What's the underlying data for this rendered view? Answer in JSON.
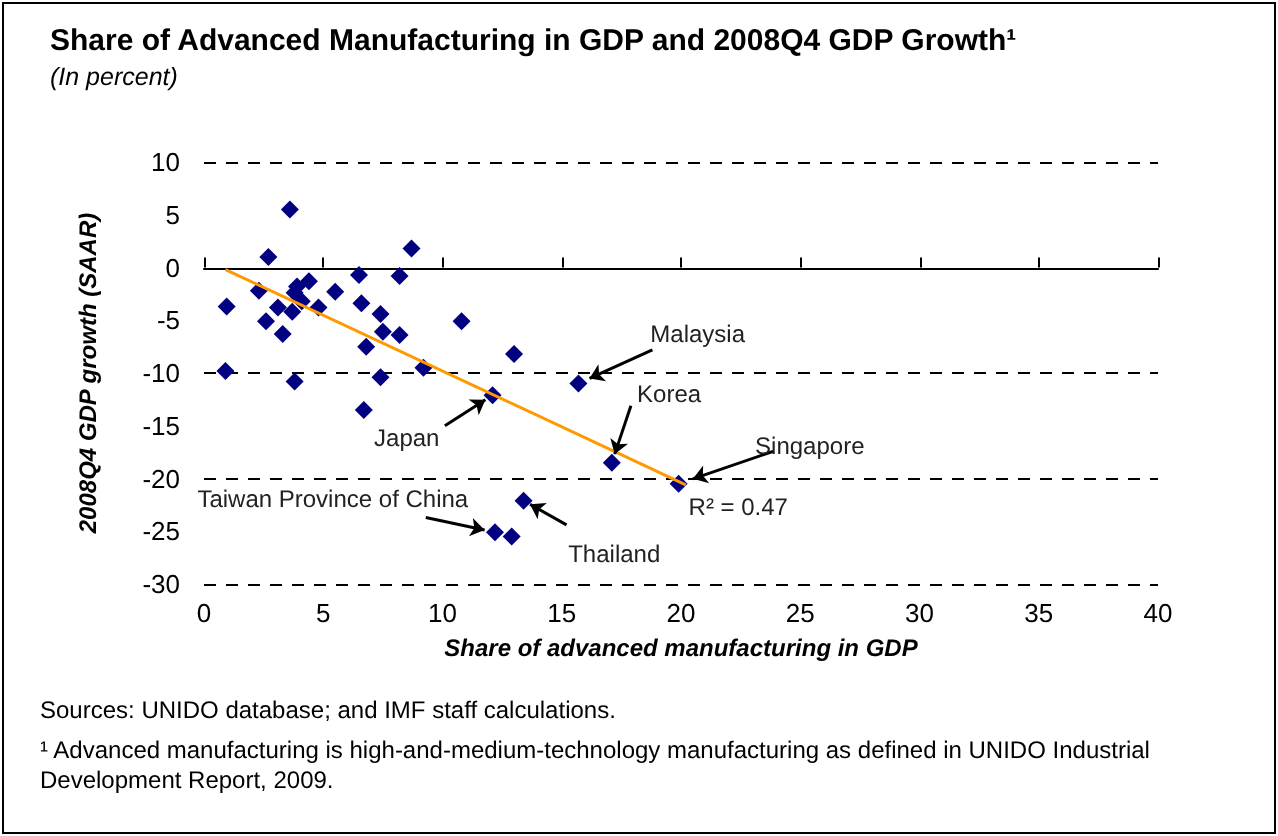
{
  "chart_data": {
    "type": "scatter",
    "title": "Share of Advanced Manufacturing in GDP and 2008Q4 GDP Growth¹",
    "subtitle": "(In percent)",
    "xlabel": "Share of advanced manufacturing in GDP",
    "ylabel": "2008Q4 GDP growth (SAAR)",
    "xlim": [
      0,
      40
    ],
    "xticks": [
      0,
      5,
      10,
      15,
      20,
      25,
      30,
      35,
      40
    ],
    "ylim": [
      -30,
      10
    ],
    "yticks": [
      -30,
      -25,
      -20,
      -15,
      -10,
      -5,
      0,
      5,
      10
    ],
    "grid": "y",
    "marker": "diamond",
    "series": [
      {
        "color": "#000080",
        "x": [
          0.95,
          2.3,
          2.7,
          2.6,
          3.1,
          3.3,
          3.6,
          3.7,
          3.8,
          3.9,
          4.1,
          4.4,
          4.8,
          5.5,
          6.5,
          6.6,
          7.4,
          7.5,
          8.2,
          8.2,
          8.7,
          10.8,
          0.9,
          3.8,
          6.8,
          6.7,
          7.4,
          9.2,
          12.1,
          12.2,
          13.0,
          15.7,
          17.1,
          19.9,
          13.4,
          12.9
        ],
        "values": [
          -3.7,
          -2.2,
          1.0,
          -5.1,
          -3.8,
          -6.3,
          5.5,
          -4.2,
          -2.4,
          -1.8,
          -3.2,
          -1.3,
          -3.8,
          -2.3,
          -0.7,
          -3.4,
          -4.4,
          -6.1,
          -0.8,
          -6.4,
          1.8,
          -5.1,
          -9.8,
          -10.8,
          -7.5,
          -13.5,
          -10.4,
          -9.5,
          -12.1,
          -25.1,
          -8.2,
          -11.0,
          -18.5,
          -20.5,
          -22.1,
          -25.5
        ]
      },
      {
        "type": "line",
        "color": "#ff9900",
        "marker": "none",
        "x": [
          0.9,
          20.2
        ],
        "values": [
          -0.2,
          -20.6
        ]
      }
    ],
    "annotations": [
      {
        "text": "Malaysia",
        "x": 15.7,
        "y": -11.0
      },
      {
        "text": "Korea",
        "x": 17.1,
        "y": -18.5
      },
      {
        "text": "Japan",
        "x": 12.1,
        "y": -12.1
      },
      {
        "text": "Singapore",
        "x": 19.9,
        "y": -20.5
      },
      {
        "text": "Taiwan Province of China",
        "x": 12.2,
        "y": -25.1
      },
      {
        "text": "Thailand",
        "x": 13.4,
        "y": -22.1
      },
      "R² = 0.47",
      "Sources: UNIDO database; and IMF staff calculations.",
      "¹ Advanced manufacturing is high-and-medium-technology manufacturing as defined in UNIDO Industrial Development Report, 2009."
    ]
  }
}
